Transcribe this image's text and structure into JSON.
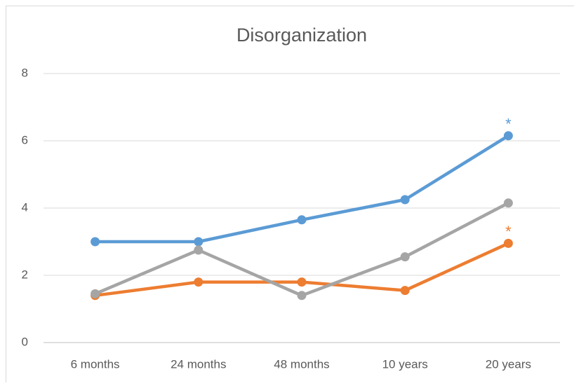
{
  "chart_data": {
    "type": "line",
    "title": "Disorganization",
    "categories": [
      "6 months",
      "24 months",
      "48 months",
      "10 years",
      "20 years"
    ],
    "series": [
      {
        "color": "#5b9bd5",
        "values": [
          3.0,
          3.0,
          3.65,
          4.25,
          6.15
        ],
        "end_label": "*"
      },
      {
        "color": "#ed7d31",
        "values": [
          1.4,
          1.8,
          1.8,
          1.55,
          2.95
        ],
        "end_label": "*"
      },
      {
        "color": "#a5a5a5",
        "values": [
          1.45,
          2.75,
          1.4,
          2.55,
          4.15
        ]
      }
    ],
    "ylim": [
      0,
      8
    ],
    "yticks": [
      0,
      2,
      4,
      6,
      8
    ],
    "grid": true
  }
}
